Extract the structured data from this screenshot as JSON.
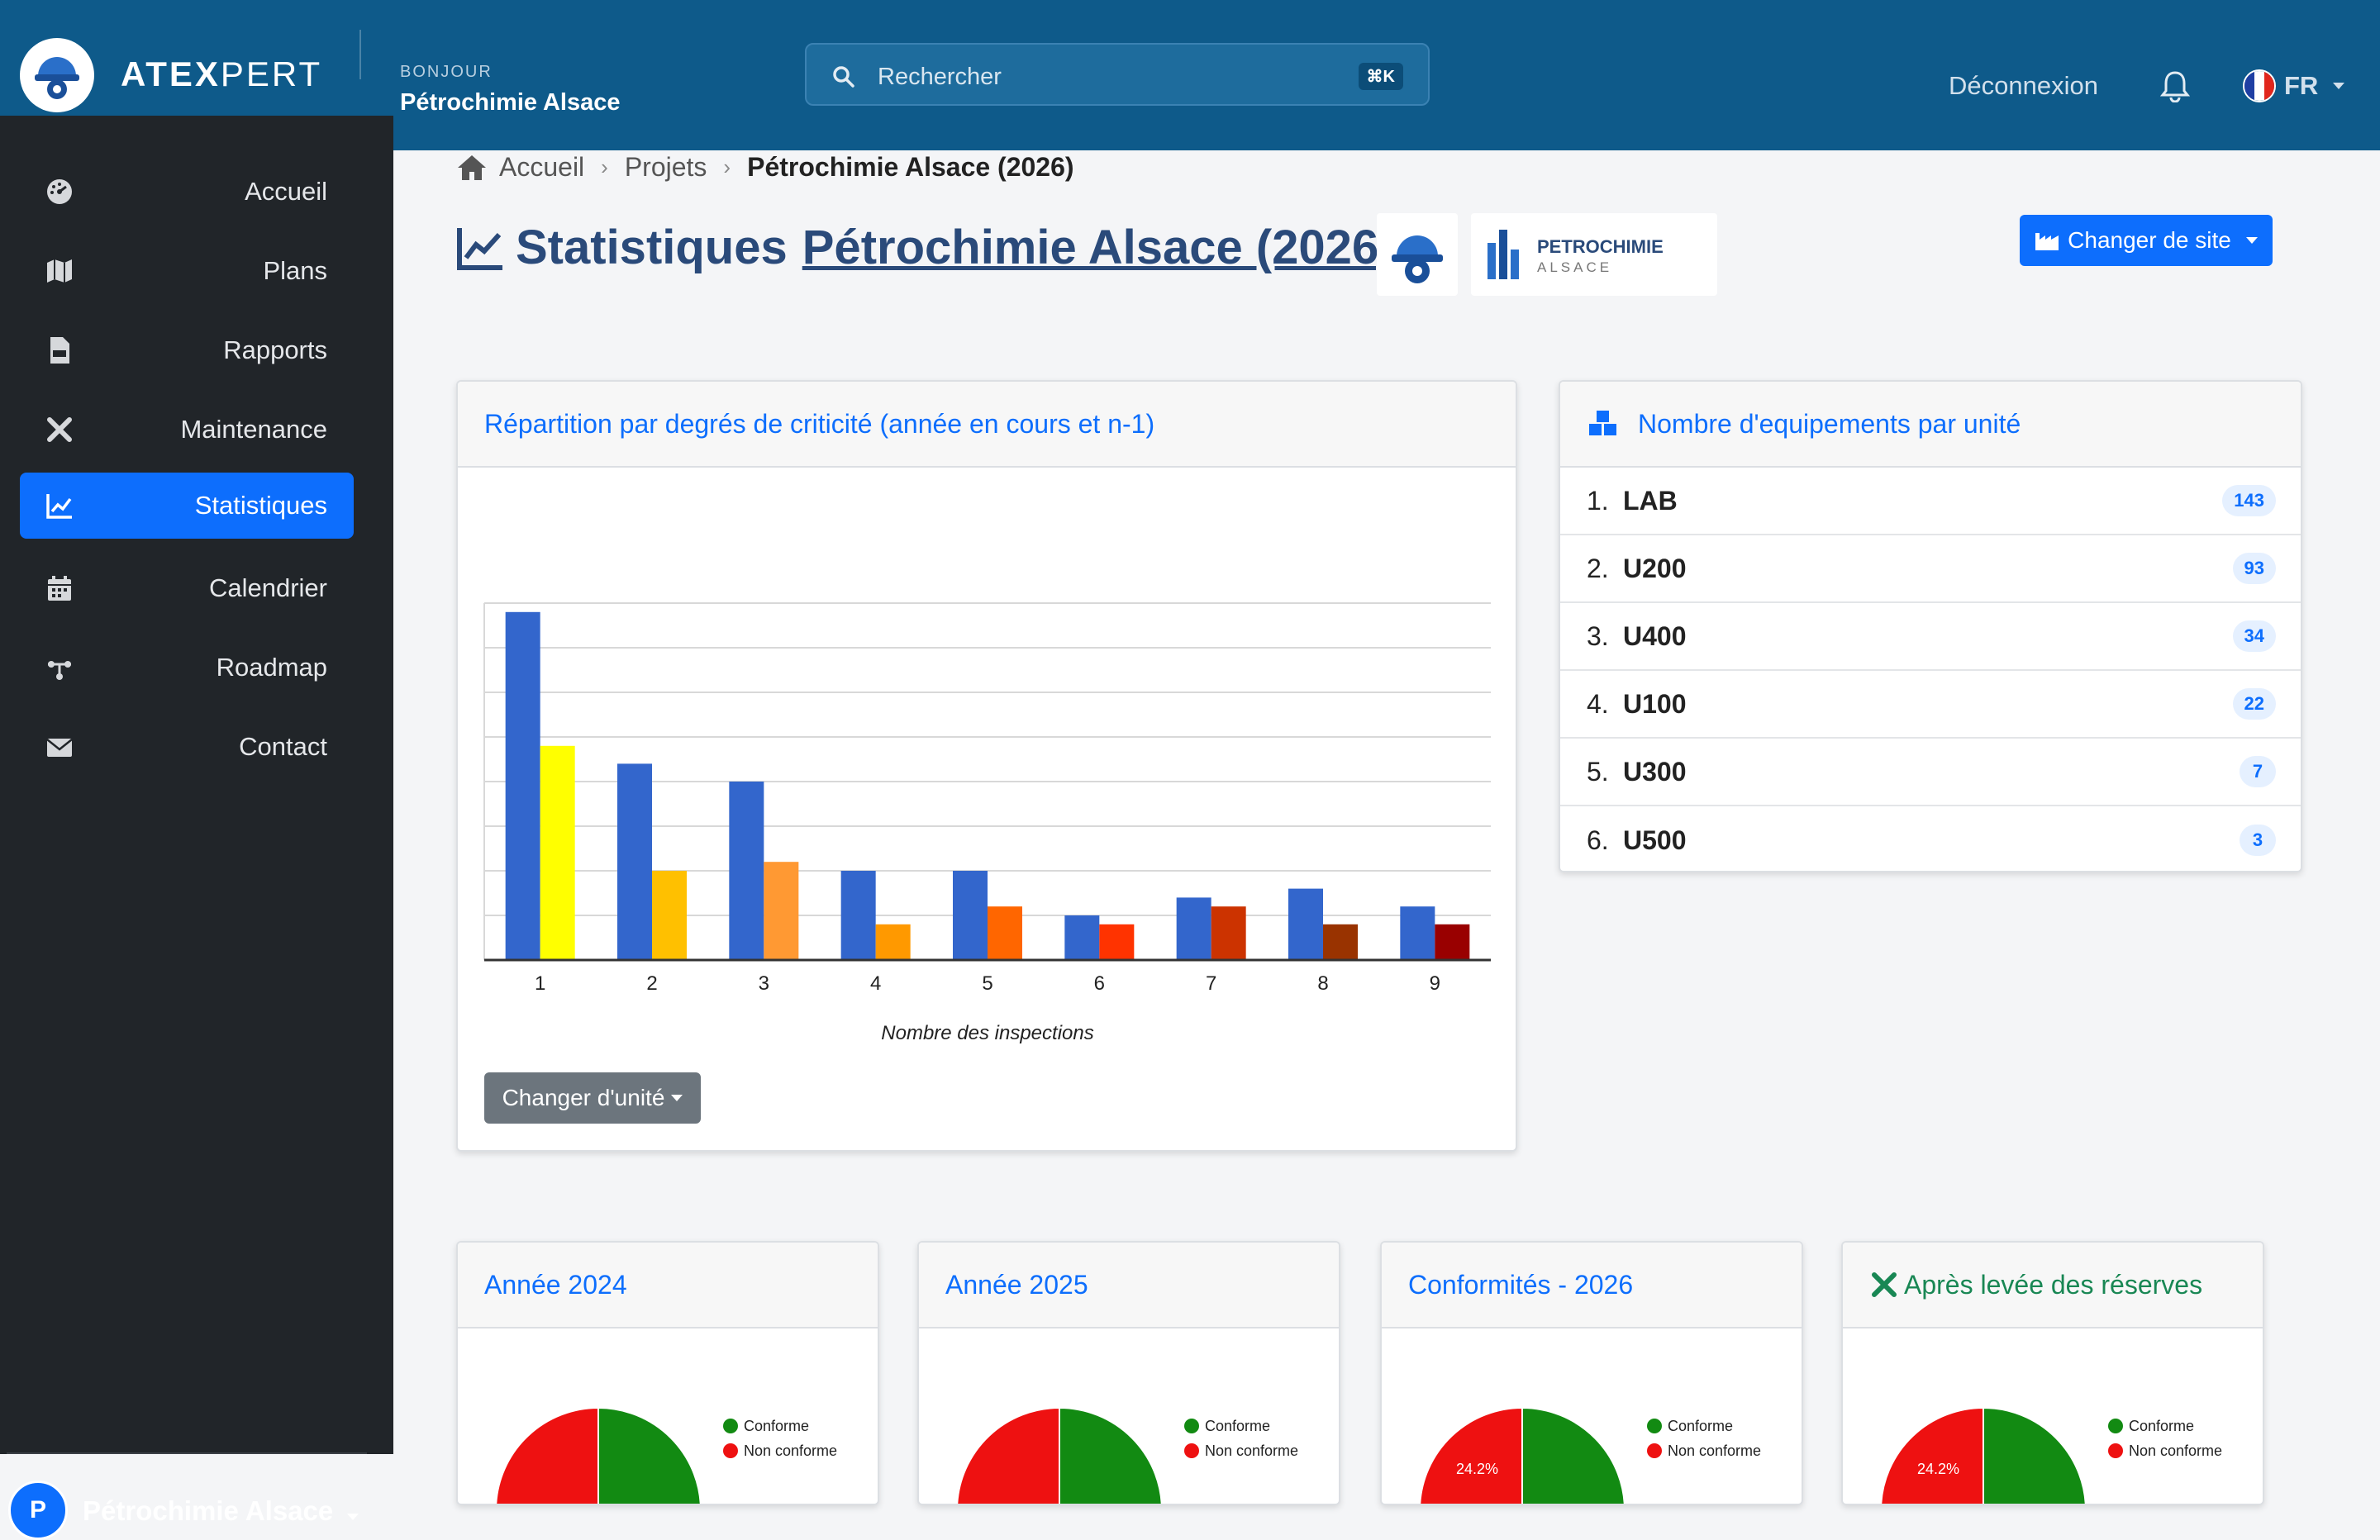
{
  "app": {
    "brand_bold": "ATEX",
    "brand_light": "PERT",
    "greeting": "BONJOUR",
    "site_name": "Pétrochimie Alsace"
  },
  "search": {
    "placeholder": "Rechercher",
    "shortcut": "⌘K"
  },
  "header": {
    "logout": "Déconnexion",
    "language": "FR"
  },
  "sidebar": {
    "items": [
      {
        "label": "Accueil",
        "icon": "dashboard-icon"
      },
      {
        "label": "Plans",
        "icon": "map-icon"
      },
      {
        "label": "Rapports",
        "icon": "pdf-icon"
      },
      {
        "label": "Maintenance",
        "icon": "tools-icon"
      },
      {
        "label": "Statistiques",
        "icon": "chart-line-icon",
        "active": true
      },
      {
        "label": "Calendrier",
        "icon": "calendar-icon"
      },
      {
        "label": "Roadmap",
        "icon": "roadmap-icon"
      },
      {
        "label": "Contact",
        "icon": "envelope-icon"
      }
    ],
    "user_initial": "P",
    "user_name": "Pétrochimie Alsace"
  },
  "breadcrumb": {
    "home": "Accueil",
    "projects": "Projets",
    "current": "Pétrochimie Alsace (2026)"
  },
  "page": {
    "title": "Statistiques",
    "title_link": "Pétrochimie Alsace (2026)",
    "partner_name": "PETROCHIMIE",
    "partner_sub": "ALSACE",
    "change_site": "Changer de site"
  },
  "criticality_card": {
    "title": "Répartition par degrés de criticité (année en cours et n-1)",
    "change_unit": "Changer d'unité"
  },
  "equipment_card": {
    "title": "Nombre d'equipements par unité",
    "rows": [
      {
        "num": "1.",
        "name": "LAB",
        "count": "143"
      },
      {
        "num": "2.",
        "name": "U200",
        "count": "93"
      },
      {
        "num": "3.",
        "name": "U400",
        "count": "34"
      },
      {
        "num": "4.",
        "name": "U100",
        "count": "22"
      },
      {
        "num": "5.",
        "name": "U300",
        "count": "7"
      },
      {
        "num": "6.",
        "name": "U500",
        "count": "3"
      }
    ]
  },
  "pie_cards": [
    {
      "title": "Année 2024",
      "label_nc": ""
    },
    {
      "title": "Année 2025",
      "label_nc": ""
    },
    {
      "title": "Conformités - 2026",
      "label_nc": "24.2%"
    },
    {
      "title": "Après levée des réserves",
      "label_nc": "24.2%"
    }
  ],
  "legend": {
    "conforme": "Conforme",
    "non_conforme": "Non conforme"
  },
  "colors": {
    "accent": "#0d6efd",
    "topbar": "#0e5a8a",
    "sidebar": "#212529",
    "conforme": "#128a12",
    "non_conforme": "#ee1111"
  },
  "chart_data": [
    {
      "type": "bar",
      "title": "Répartition par degrés de criticité (année en cours et n-1)",
      "xlabel": "Nombre des inspections",
      "ylabel": "",
      "categories": [
        "1",
        "2",
        "3",
        "4",
        "5",
        "6",
        "7",
        "8",
        "9"
      ],
      "grid": true,
      "ylim": [
        0,
        40
      ],
      "series": [
        {
          "values": [
            39,
            22,
            20,
            10,
            10,
            5,
            7,
            8,
            6
          ],
          "colors": [
            "#3366cc",
            "#3366cc",
            "#3366cc",
            "#3366cc",
            "#3366cc",
            "#3366cc",
            "#3366cc",
            "#3366cc",
            "#3366cc"
          ]
        },
        {
          "values": [
            24,
            10,
            11,
            4,
            6,
            4,
            6,
            4,
            4
          ],
          "colors": [
            "#ffff00",
            "#ffc000",
            "#ff9933",
            "#ff9900",
            "#ff6600",
            "#ff3300",
            "#cc3300",
            "#993300",
            "#990000"
          ]
        }
      ]
    },
    {
      "type": "pie",
      "title": "Année 2024",
      "legend": [
        "Conforme",
        "Non conforme"
      ],
      "values": [
        75.8,
        24.2
      ]
    },
    {
      "type": "pie",
      "title": "Année 2025",
      "legend": [
        "Conforme",
        "Non conforme"
      ],
      "values": [
        75.8,
        24.2
      ]
    },
    {
      "type": "pie",
      "title": "Conformités - 2026",
      "legend": [
        "Conforme",
        "Non conforme"
      ],
      "values": [
        75.8,
        24.2
      ]
    },
    {
      "type": "pie",
      "title": "Après levée des réserves",
      "legend": [
        "Conforme",
        "Non conforme"
      ],
      "values": [
        75.8,
        24.2
      ]
    }
  ]
}
